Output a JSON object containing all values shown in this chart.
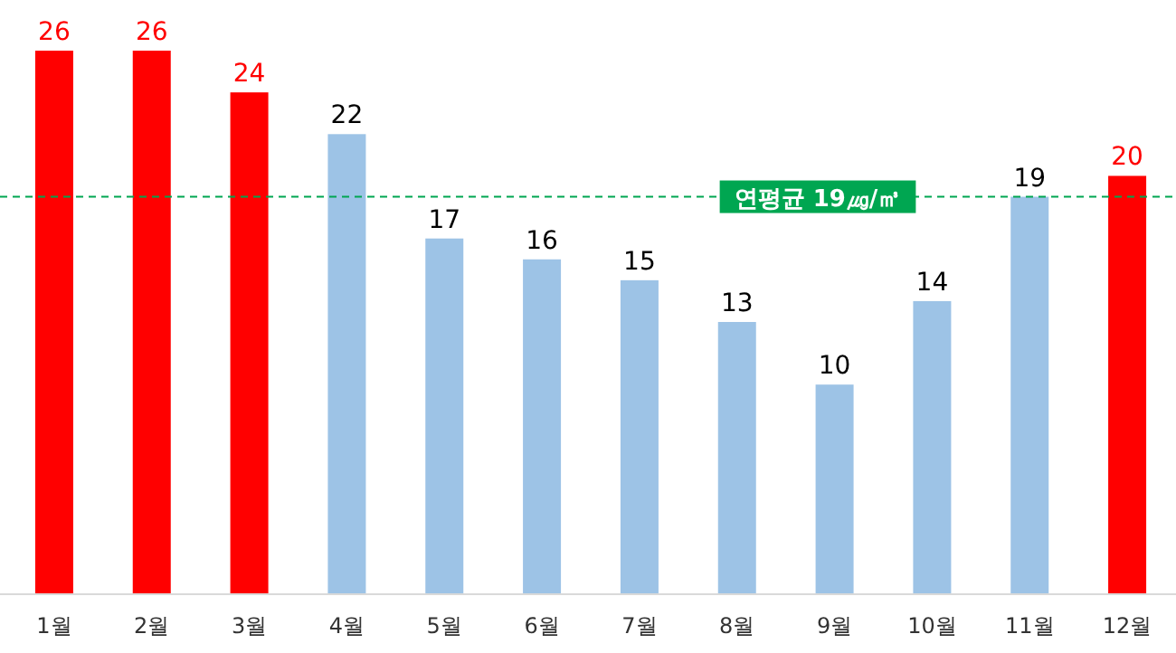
{
  "chart_data": {
    "type": "bar",
    "categories": [
      "1월",
      "2월",
      "3월",
      "4월",
      "5월",
      "6월",
      "7월",
      "8월",
      "9월",
      "10월",
      "11월",
      "12월"
    ],
    "values": [
      26,
      26,
      24,
      22,
      17,
      16,
      15,
      13,
      10,
      14,
      19,
      20
    ],
    "colors": [
      "#ff0000",
      "#ff0000",
      "#ff0000",
      "#9dc3e6",
      "#9dc3e6",
      "#9dc3e6",
      "#9dc3e6",
      "#9dc3e6",
      "#9dc3e6",
      "#9dc3e6",
      "#9dc3e6",
      "#ff0000"
    ],
    "data_labels": true,
    "ref_lines": [
      {
        "axis": "y",
        "value": 19,
        "label": "연평균 19㎍/㎥",
        "color": "#00a651",
        "line_style": "dashed"
      }
    ]
  }
}
